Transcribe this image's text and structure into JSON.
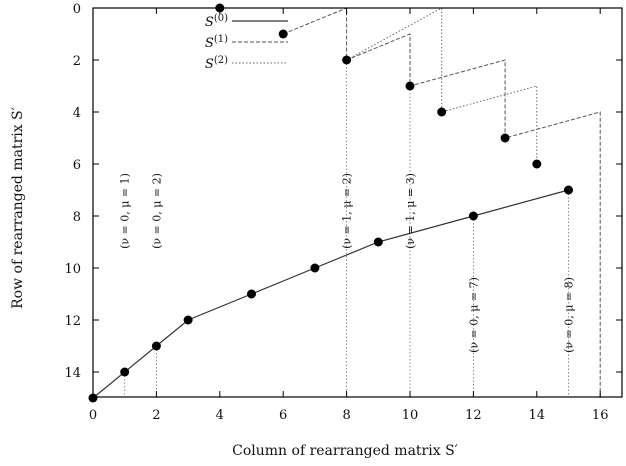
{
  "chart_data": {
    "type": "line",
    "title": "",
    "xlabel": "Column of rearranged matrix S′",
    "ylabel": "Row of rearranged matrix S′",
    "xlim": [
      0,
      16.8
    ],
    "ylim": [
      15,
      0
    ],
    "y_inverted": true,
    "xticks": [
      0,
      2,
      4,
      6,
      8,
      10,
      12,
      14,
      16
    ],
    "yticks": [
      0,
      2,
      4,
      6,
      8,
      10,
      12,
      14
    ],
    "grid": false,
    "legend_position": "top-left",
    "points": [
      {
        "x": 0,
        "y": 15
      },
      {
        "x": 1,
        "y": 14
      },
      {
        "x": 2,
        "y": 13
      },
      {
        "x": 3,
        "y": 12
      },
      {
        "x": 5,
        "y": 11
      },
      {
        "x": 7,
        "y": 10
      },
      {
        "x": 9,
        "y": 9
      },
      {
        "x": 12,
        "y": 8
      },
      {
        "x": 15,
        "y": 7
      },
      {
        "x": 14,
        "y": 6
      },
      {
        "x": 13,
        "y": 5
      },
      {
        "x": 11,
        "y": 4
      },
      {
        "x": 10,
        "y": 3
      },
      {
        "x": 8,
        "y": 2
      },
      {
        "x": 6,
        "y": 1
      },
      {
        "x": 4,
        "y": 0
      }
    ],
    "series": [
      {
        "name": "S(0)",
        "style": "solid",
        "x": [
          0,
          1,
          2,
          3,
          5,
          7,
          9,
          12,
          15
        ],
        "y": [
          15,
          14,
          13,
          12,
          11,
          10,
          9,
          8,
          7
        ]
      },
      {
        "name": "S(1)",
        "style": "dashed",
        "x": [
          6,
          8,
          8,
          10,
          10,
          13,
          13,
          16,
          16
        ],
        "y": [
          1,
          0,
          2,
          1,
          3,
          2,
          5,
          4,
          15
        ]
      },
      {
        "name": "S(2)",
        "style": "dotted",
        "x": [
          8,
          11,
          11,
          14,
          14
        ],
        "y": [
          2,
          0,
          4,
          3,
          6
        ]
      }
    ],
    "legend": [
      {
        "base": "S",
        "sup": "(0)"
      },
      {
        "base": "S",
        "sup": "(1)"
      },
      {
        "base": "S",
        "sup": "(2)"
      }
    ],
    "annotations": [
      {
        "text": "(ν = 0, μ = 1)",
        "x": 1,
        "y_from": 14,
        "y_to": 8
      },
      {
        "text": "(ν = 0, μ = 2)",
        "x": 2,
        "y_from": 13,
        "y_to": 8
      },
      {
        "text": "(ν = 1, μ = 2)",
        "x": 8,
        "y_from": 2,
        "y_to": 8
      },
      {
        "text": "(ν = 1, μ = 3)",
        "x": 10,
        "y_from": 3,
        "y_to": 8
      },
      {
        "text": "(ν = 0, μ = 7)",
        "x": 12,
        "y_from": 8,
        "y_to": 12
      },
      {
        "text": "(ν = 0, μ = 8)",
        "x": 15,
        "y_from": 7,
        "y_to": 12
      }
    ]
  }
}
